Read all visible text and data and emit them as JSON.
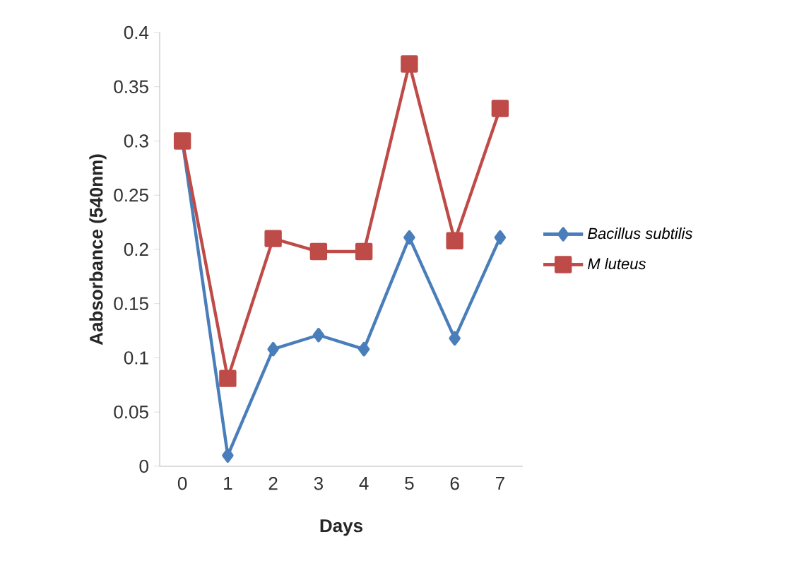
{
  "chart_data": {
    "type": "line",
    "xlabel": "Days",
    "ylabel": "Aabsorbance (540nm)",
    "categories": [
      "0",
      "1",
      "2",
      "3",
      "4",
      "5",
      "6",
      "7"
    ],
    "series": [
      {
        "name": "Bacillus subtilis",
        "color": "#4a7ebb",
        "marker": "diamond",
        "values": [
          0.3,
          0.01,
          0.108,
          0.121,
          0.108,
          0.211,
          0.118,
          0.211
        ]
      },
      {
        "name": "M luteus",
        "color": "#be4b48",
        "marker": "square",
        "values": [
          0.3,
          0.081,
          0.21,
          0.198,
          0.198,
          0.371,
          0.208,
          0.33
        ]
      }
    ],
    "ylim": [
      0,
      0.4
    ],
    "yticks": [
      0,
      0.05,
      0.1,
      0.15,
      0.2,
      0.25,
      0.3,
      0.35,
      0.4
    ],
    "grid": false,
    "legend": "right"
  }
}
